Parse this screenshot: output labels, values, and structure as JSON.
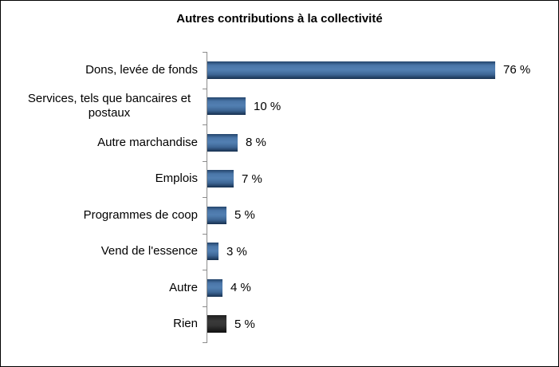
{
  "chart_data": {
    "type": "bar",
    "orientation": "horizontal",
    "title": "Autres contributions à la collectivité",
    "categories": [
      "Dons, levée de fonds",
      "Services, tels que bancaires et postaux",
      "Autre marchandise",
      "Emplois",
      "Programmes de coop",
      "Vend de l'essence",
      "Autre",
      "Rien"
    ],
    "values": [
      76,
      10,
      8,
      7,
      5,
      3,
      4,
      5
    ],
    "value_labels": [
      "76 %",
      "10 %",
      "8 %",
      "7 %",
      "5 %",
      "3 %",
      "4 %",
      "5 %"
    ],
    "bar_color_keys": [
      "blue",
      "blue",
      "blue",
      "blue",
      "blue",
      "blue",
      "blue",
      "charcoal"
    ],
    "palette": {
      "blue": "#4a76a8",
      "charcoal": "#333333",
      "axis": "#8c8c8c",
      "text": "#000000",
      "background": "#ffffff",
      "border": "#000000"
    },
    "xlabel": "",
    "ylabel": "",
    "xlim": [
      0,
      80
    ],
    "grid": false,
    "legend": false,
    "data_labels": true
  }
}
